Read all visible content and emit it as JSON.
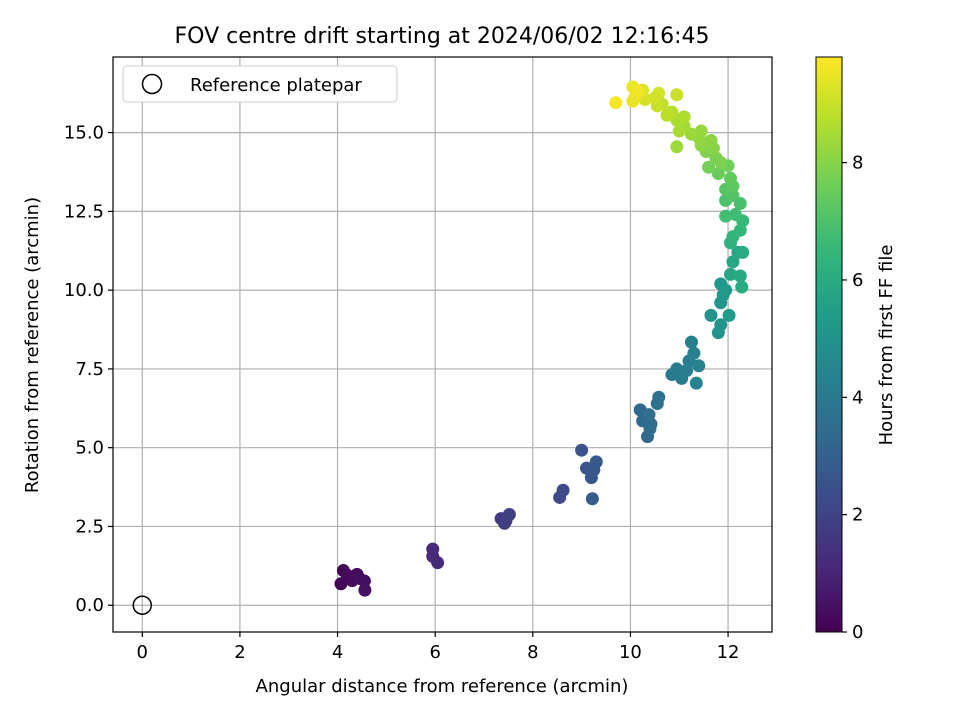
{
  "chart_data": {
    "type": "scatter",
    "title": "FOV centre drift starting at 2024/06/02 12:16:45",
    "xlabel": "Angular distance from reference (arcmin)",
    "ylabel": "Rotation from reference (arcmin)",
    "xlim": [
      -0.6,
      12.9
    ],
    "ylim": [
      -0.85,
      17.4
    ],
    "xticks": [
      0,
      2,
      4,
      6,
      8,
      10,
      12
    ],
    "xtick_labels": [
      "0",
      "2",
      "4",
      "6",
      "8",
      "10",
      "12"
    ],
    "yticks": [
      0.0,
      2.5,
      5.0,
      7.5,
      10.0,
      12.5,
      15.0
    ],
    "ytick_labels": [
      "0.0",
      "2.5",
      "5.0",
      "7.5",
      "10.0",
      "12.5",
      "15.0"
    ],
    "grid": true,
    "legend": {
      "placement": "top-left",
      "entries": [
        "Reference platepar"
      ]
    },
    "reference_point": {
      "name": "Reference platepar",
      "x": 0,
      "y": 0,
      "marker": "open circle"
    },
    "colorbar": {
      "label": "Hours from first FF file",
      "colormap": "viridis",
      "range": [
        0,
        9.8
      ],
      "ticks": [
        0,
        2,
        4,
        6,
        8
      ],
      "tick_labels": [
        "0",
        "2",
        "4",
        "6",
        "8"
      ],
      "stops": [
        "#440154",
        "#482878",
        "#3e4989",
        "#31688e",
        "#26828e",
        "#1f9e89",
        "#35b779",
        "#6ece58",
        "#b5de2b",
        "#fde725"
      ]
    },
    "points": [
      {
        "x": 4.07,
        "y": 0.68,
        "c": 0.1
      },
      {
        "x": 4.12,
        "y": 1.1,
        "c": 0.15
      },
      {
        "x": 4.2,
        "y": 0.95,
        "c": 0.2
      },
      {
        "x": 4.3,
        "y": 0.78,
        "c": 0.25
      },
      {
        "x": 4.4,
        "y": 0.98,
        "c": 0.3
      },
      {
        "x": 4.45,
        "y": 0.85,
        "c": 0.35
      },
      {
        "x": 4.55,
        "y": 0.77,
        "c": 0.4
      },
      {
        "x": 4.56,
        "y": 0.48,
        "c": 0.45
      },
      {
        "x": 5.95,
        "y": 1.78,
        "c": 1.1
      },
      {
        "x": 5.95,
        "y": 1.55,
        "c": 1.15
      },
      {
        "x": 6.05,
        "y": 1.35,
        "c": 1.2
      },
      {
        "x": 7.35,
        "y": 2.75,
        "c": 1.7
      },
      {
        "x": 7.42,
        "y": 2.6,
        "c": 1.75
      },
      {
        "x": 7.45,
        "y": 2.68,
        "c": 1.8
      },
      {
        "x": 7.52,
        "y": 2.88,
        "c": 1.85
      },
      {
        "x": 8.55,
        "y": 3.42,
        "c": 2.2
      },
      {
        "x": 8.62,
        "y": 3.65,
        "c": 2.25
      },
      {
        "x": 9.0,
        "y": 4.92,
        "c": 2.55
      },
      {
        "x": 9.1,
        "y": 4.35,
        "c": 2.6
      },
      {
        "x": 9.2,
        "y": 4.05,
        "c": 2.65
      },
      {
        "x": 9.25,
        "y": 4.3,
        "c": 2.7
      },
      {
        "x": 9.3,
        "y": 4.55,
        "c": 2.75
      },
      {
        "x": 9.22,
        "y": 3.38,
        "c": 2.8
      },
      {
        "x": 10.2,
        "y": 6.2,
        "c": 3.3
      },
      {
        "x": 10.25,
        "y": 5.85,
        "c": 3.35
      },
      {
        "x": 10.35,
        "y": 5.35,
        "c": 3.4
      },
      {
        "x": 10.4,
        "y": 5.6,
        "c": 3.45
      },
      {
        "x": 10.42,
        "y": 5.75,
        "c": 3.5
      },
      {
        "x": 10.38,
        "y": 6.05,
        "c": 3.5
      },
      {
        "x": 10.55,
        "y": 6.4,
        "c": 3.6
      },
      {
        "x": 10.58,
        "y": 6.6,
        "c": 3.65
      },
      {
        "x": 10.85,
        "y": 7.32,
        "c": 4.0
      },
      {
        "x": 10.95,
        "y": 7.5,
        "c": 4.05
      },
      {
        "x": 11.05,
        "y": 7.2,
        "c": 4.1
      },
      {
        "x": 11.15,
        "y": 7.45,
        "c": 4.15
      },
      {
        "x": 11.2,
        "y": 7.75,
        "c": 4.2
      },
      {
        "x": 11.25,
        "y": 8.35,
        "c": 4.25
      },
      {
        "x": 11.3,
        "y": 8.0,
        "c": 4.3
      },
      {
        "x": 11.35,
        "y": 7.05,
        "c": 4.35
      },
      {
        "x": 11.4,
        "y": 7.6,
        "c": 4.4
      },
      {
        "x": 11.65,
        "y": 9.2,
        "c": 5.0
      },
      {
        "x": 11.8,
        "y": 8.65,
        "c": 5.05
      },
      {
        "x": 11.85,
        "y": 8.9,
        "c": 5.1
      },
      {
        "x": 11.85,
        "y": 9.6,
        "c": 5.15
      },
      {
        "x": 11.9,
        "y": 9.85,
        "c": 5.2
      },
      {
        "x": 11.85,
        "y": 10.2,
        "c": 5.25
      },
      {
        "x": 11.95,
        "y": 10.0,
        "c": 5.3
      },
      {
        "x": 12.02,
        "y": 9.2,
        "c": 5.35
      },
      {
        "x": 12.05,
        "y": 10.5,
        "c": 5.8
      },
      {
        "x": 12.1,
        "y": 10.9,
        "c": 5.85
      },
      {
        "x": 12.2,
        "y": 11.2,
        "c": 5.9
      },
      {
        "x": 12.25,
        "y": 10.45,
        "c": 5.95
      },
      {
        "x": 12.28,
        "y": 10.1,
        "c": 6.0
      },
      {
        "x": 12.3,
        "y": 11.2,
        "c": 6.0
      },
      {
        "x": 12.05,
        "y": 11.5,
        "c": 6.3
      },
      {
        "x": 12.1,
        "y": 11.7,
        "c": 6.4
      },
      {
        "x": 12.25,
        "y": 11.9,
        "c": 6.5
      },
      {
        "x": 12.3,
        "y": 12.2,
        "c": 6.6
      },
      {
        "x": 12.15,
        "y": 12.4,
        "c": 6.7
      },
      {
        "x": 11.95,
        "y": 12.35,
        "c": 6.8
      },
      {
        "x": 12.25,
        "y": 12.75,
        "c": 6.9
      },
      {
        "x": 11.95,
        "y": 12.85,
        "c": 7.0
      },
      {
        "x": 12.1,
        "y": 13.0,
        "c": 7.1
      },
      {
        "x": 11.95,
        "y": 13.2,
        "c": 7.2
      },
      {
        "x": 12.1,
        "y": 13.3,
        "c": 7.3
      },
      {
        "x": 12.05,
        "y": 13.55,
        "c": 7.4
      },
      {
        "x": 11.8,
        "y": 13.7,
        "c": 7.5
      },
      {
        "x": 12.0,
        "y": 13.95,
        "c": 7.6
      },
      {
        "x": 11.6,
        "y": 13.9,
        "c": 7.7
      },
      {
        "x": 11.75,
        "y": 14.2,
        "c": 7.8
      },
      {
        "x": 11.85,
        "y": 14.05,
        "c": 7.85
      },
      {
        "x": 11.55,
        "y": 14.4,
        "c": 7.9
      },
      {
        "x": 11.7,
        "y": 14.5,
        "c": 8.0
      },
      {
        "x": 11.65,
        "y": 14.75,
        "c": 8.05
      },
      {
        "x": 11.45,
        "y": 14.6,
        "c": 8.1
      },
      {
        "x": 11.4,
        "y": 14.85,
        "c": 8.2
      },
      {
        "x": 11.45,
        "y": 15.05,
        "c": 8.25
      },
      {
        "x": 11.25,
        "y": 14.95,
        "c": 8.3
      },
      {
        "x": 10.95,
        "y": 14.55,
        "c": 8.35
      },
      {
        "x": 11.1,
        "y": 15.2,
        "c": 8.4
      },
      {
        "x": 11.0,
        "y": 15.05,
        "c": 8.5
      },
      {
        "x": 10.95,
        "y": 15.4,
        "c": 8.55
      },
      {
        "x": 11.1,
        "y": 15.5,
        "c": 8.6
      },
      {
        "x": 10.85,
        "y": 15.65,
        "c": 8.7
      },
      {
        "x": 10.75,
        "y": 15.55,
        "c": 8.8
      },
      {
        "x": 10.65,
        "y": 15.9,
        "c": 8.9
      },
      {
        "x": 10.55,
        "y": 15.85,
        "c": 9.0
      },
      {
        "x": 10.95,
        "y": 16.2,
        "c": 9.05
      },
      {
        "x": 10.5,
        "y": 16.1,
        "c": 9.1
      },
      {
        "x": 10.58,
        "y": 16.25,
        "c": 9.15
      },
      {
        "x": 10.3,
        "y": 16.05,
        "c": 9.2
      },
      {
        "x": 10.25,
        "y": 16.35,
        "c": 9.3
      },
      {
        "x": 10.1,
        "y": 16.15,
        "c": 9.4
      },
      {
        "x": 10.05,
        "y": 16.45,
        "c": 9.5
      },
      {
        "x": 10.05,
        "y": 16.0,
        "c": 9.55
      },
      {
        "x": 10.15,
        "y": 16.3,
        "c": 9.6
      },
      {
        "x": 9.7,
        "y": 15.95,
        "c": 9.7
      }
    ]
  }
}
